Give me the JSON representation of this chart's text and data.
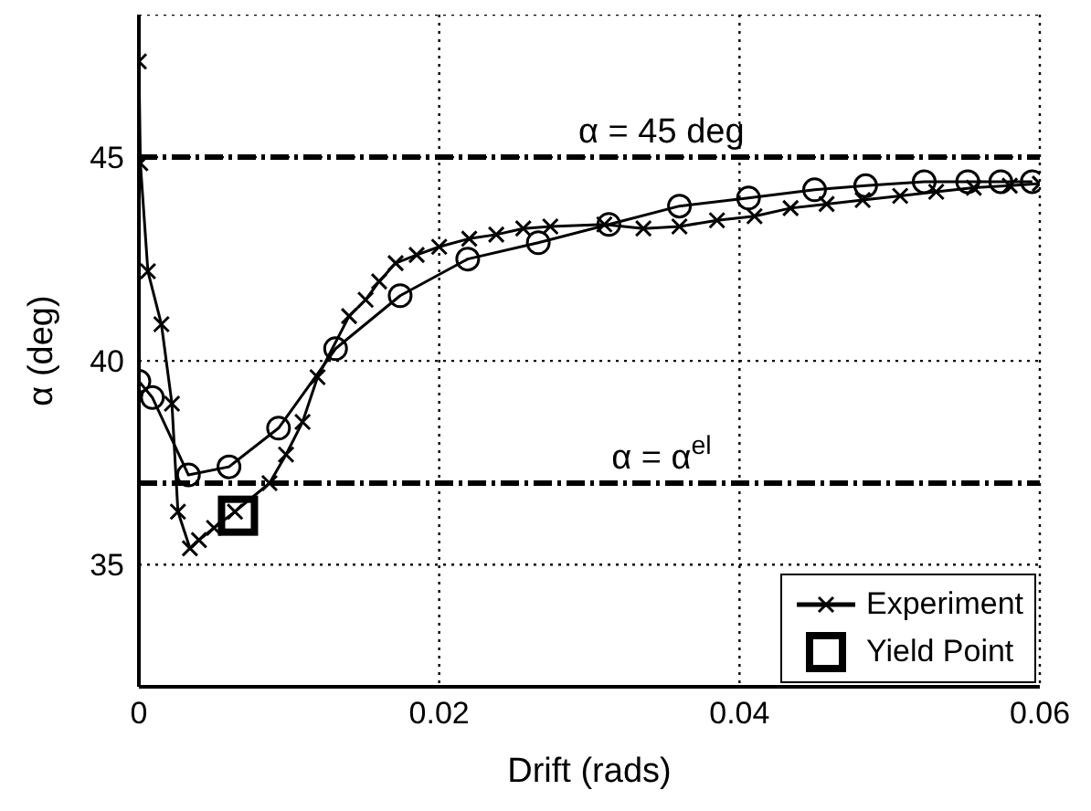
{
  "chart_data": {
    "type": "line",
    "xlabel": "Drift (rads)",
    "ylabel": "α (deg)",
    "xlim": [
      0,
      0.06
    ],
    "xticks": [
      0,
      0.02,
      0.04,
      0.06
    ],
    "ylim": [
      32,
      48.5
    ],
    "yticks": [
      35,
      40,
      45
    ],
    "grid": true,
    "legend": "bottom right",
    "line_style": "solid",
    "ref_lines": [
      {
        "axis": "y",
        "value": 45,
        "label": "α = 45 deg",
        "color": "#000000",
        "line_style": "dashed"
      },
      {
        "axis": "y",
        "value": 37,
        "label": "α = α$^{el}$",
        "color": "#000000",
        "line_style": "dashed"
      }
    ],
    "series": [
      {
        "color": "#000000",
        "marker": "circle",
        "x": [
          0,
          0.0009,
          0.0033,
          0.006,
          0.0093,
          0.0131,
          0.0174,
          0.0219,
          0.0266,
          0.0313,
          0.036,
          0.0406,
          0.045,
          0.0484,
          0.0523,
          0.0552,
          0.0574,
          0.0595
        ],
        "values": [
          39.5,
          39.1,
          37.2,
          37.4,
          38.35,
          40.3,
          41.6,
          42.5,
          42.9,
          43.35,
          43.8,
          44.0,
          44.2,
          44.3,
          44.4,
          44.4,
          44.4,
          44.4
        ]
      },
      {
        "name": "Experiment",
        "color": "#000000",
        "marker": "cross",
        "x": [
          0,
          0.0001,
          0.0006,
          0.0015,
          0.0022,
          0.0026,
          0.0034,
          0.004,
          0.005,
          0.0064,
          0.0087,
          0.0098,
          0.0109,
          0.0119,
          0.014,
          0.0151,
          0.016,
          0.0171,
          0.0185,
          0.02,
          0.022,
          0.0238,
          0.0256,
          0.0274,
          0.031,
          0.0336,
          0.036,
          0.0385,
          0.041,
          0.0434,
          0.0458,
          0.0482,
          0.0507,
          0.0531,
          0.0556,
          0.058,
          0.06
        ],
        "values": [
          47.35,
          44.85,
          42.2,
          40.9,
          38.95,
          36.3,
          35.4,
          35.6,
          35.9,
          36.3,
          37.0,
          37.7,
          38.5,
          39.6,
          41.1,
          41.5,
          41.95,
          42.4,
          42.6,
          42.8,
          43.0,
          43.1,
          43.25,
          43.3,
          43.35,
          43.25,
          43.3,
          43.45,
          43.55,
          43.75,
          43.85,
          43.95,
          44.05,
          44.15,
          44.25,
          44.3,
          44.35
        ]
      },
      {
        "type": "scatter",
        "name": "Yield Point",
        "color": "#000000",
        "marker": "square",
        "x": [
          0.0066
        ],
        "values": [
          36.2
        ]
      }
    ]
  }
}
